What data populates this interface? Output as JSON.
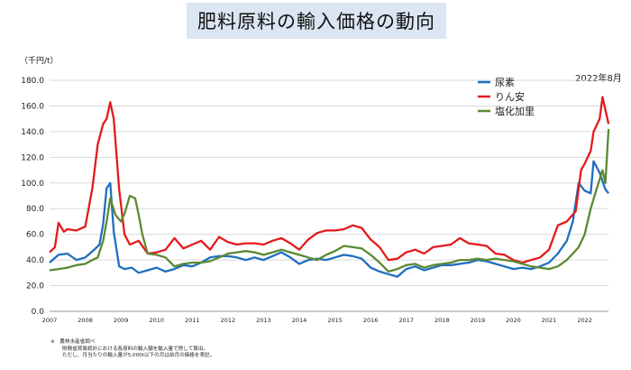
{
  "title": "肥料原料の輸入価格の動向",
  "unit_label": "（千円/t）",
  "latest_annotation": "2022年8月",
  "notes": [
    "※　農林水産省調べ",
    "財務省貿易統計における各原料の輸入額を輸入量で除して算出。",
    "ただし、月当たりの輸入量が5,000t以下の月は前月の価格を表記。"
  ],
  "chart_data": {
    "type": "line",
    "title": "肥料原料の輸入価格の動向",
    "ylabel": "（千円/t）",
    "xlabel": "",
    "ylim": [
      0,
      180
    ],
    "xlim": [
      2007.0,
      2022.667
    ],
    "y_ticks": [
      "0.0",
      "20.0",
      "40.0",
      "60.0",
      "80.0",
      "100.0",
      "120.0",
      "140.0",
      "160.0",
      "180.0"
    ],
    "x_ticks": [
      "2007",
      "2008",
      "2009",
      "2010",
      "2011",
      "2012",
      "2013",
      "2014",
      "2015",
      "2016",
      "2017",
      "2018",
      "2019",
      "2020",
      "2021",
      "2022"
    ],
    "grid": "horizontal",
    "legend_position": "top-right",
    "series": [
      {
        "name": "尿素",
        "color": "#1f6fbf",
        "points": [
          [
            2007.0,
            38
          ],
          [
            2007.25,
            44
          ],
          [
            2007.5,
            45
          ],
          [
            2007.75,
            40
          ],
          [
            2008.0,
            42
          ],
          [
            2008.25,
            48
          ],
          [
            2008.4,
            52
          ],
          [
            2008.5,
            68
          ],
          [
            2008.6,
            96
          ],
          [
            2008.7,
            100
          ],
          [
            2008.8,
            62
          ],
          [
            2008.95,
            35
          ],
          [
            2009.1,
            33
          ],
          [
            2009.3,
            34
          ],
          [
            2009.5,
            30
          ],
          [
            2009.75,
            32
          ],
          [
            2010.0,
            34
          ],
          [
            2010.25,
            31
          ],
          [
            2010.5,
            33
          ],
          [
            2010.75,
            36
          ],
          [
            2011.0,
            35
          ],
          [
            2011.25,
            38
          ],
          [
            2011.5,
            42
          ],
          [
            2011.75,
            43
          ],
          [
            2012.0,
            43
          ],
          [
            2012.25,
            42
          ],
          [
            2012.5,
            40
          ],
          [
            2012.75,
            42
          ],
          [
            2013.0,
            40
          ],
          [
            2013.25,
            43
          ],
          [
            2013.5,
            46
          ],
          [
            2013.75,
            42
          ],
          [
            2014.0,
            37
          ],
          [
            2014.25,
            40
          ],
          [
            2014.5,
            41
          ],
          [
            2014.75,
            40
          ],
          [
            2015.0,
            42
          ],
          [
            2015.25,
            44
          ],
          [
            2015.5,
            43
          ],
          [
            2015.75,
            41
          ],
          [
            2016.0,
            34
          ],
          [
            2016.25,
            31
          ],
          [
            2016.5,
            29
          ],
          [
            2016.75,
            27
          ],
          [
            2017.0,
            33
          ],
          [
            2017.25,
            35
          ],
          [
            2017.5,
            32
          ],
          [
            2017.75,
            34
          ],
          [
            2018.0,
            36
          ],
          [
            2018.25,
            36
          ],
          [
            2018.5,
            37
          ],
          [
            2018.75,
            38
          ],
          [
            2019.0,
            40
          ],
          [
            2019.25,
            39
          ],
          [
            2019.5,
            37
          ],
          [
            2019.75,
            35
          ],
          [
            2020.0,
            33
          ],
          [
            2020.25,
            34
          ],
          [
            2020.5,
            33
          ],
          [
            2020.75,
            35
          ],
          [
            2021.0,
            38
          ],
          [
            2021.25,
            45
          ],
          [
            2021.5,
            55
          ],
          [
            2021.67,
            70
          ],
          [
            2021.83,
            100
          ],
          [
            2022.0,
            94
          ],
          [
            2022.17,
            92
          ],
          [
            2022.25,
            117
          ],
          [
            2022.42,
            108
          ],
          [
            2022.58,
            95
          ],
          [
            2022.67,
            92
          ]
        ]
      },
      {
        "name": "りん安",
        "color": "#e31a1c",
        "points": [
          [
            2007.0,
            46
          ],
          [
            2007.15,
            50
          ],
          [
            2007.25,
            69
          ],
          [
            2007.4,
            62
          ],
          [
            2007.5,
            64
          ],
          [
            2007.75,
            63
          ],
          [
            2008.0,
            66
          ],
          [
            2008.2,
            96
          ],
          [
            2008.35,
            130
          ],
          [
            2008.5,
            146
          ],
          [
            2008.6,
            150
          ],
          [
            2008.7,
            163
          ],
          [
            2008.8,
            150
          ],
          [
            2008.95,
            95
          ],
          [
            2009.1,
            60
          ],
          [
            2009.25,
            52
          ],
          [
            2009.5,
            55
          ],
          [
            2009.75,
            45
          ],
          [
            2010.0,
            46
          ],
          [
            2010.25,
            48
          ],
          [
            2010.5,
            57
          ],
          [
            2010.75,
            49
          ],
          [
            2011.0,
            52
          ],
          [
            2011.25,
            55
          ],
          [
            2011.5,
            48
          ],
          [
            2011.75,
            58
          ],
          [
            2012.0,
            54
          ],
          [
            2012.25,
            52
          ],
          [
            2012.5,
            53
          ],
          [
            2012.75,
            53
          ],
          [
            2013.0,
            52
          ],
          [
            2013.25,
            55
          ],
          [
            2013.5,
            57
          ],
          [
            2013.75,
            53
          ],
          [
            2014.0,
            48
          ],
          [
            2014.25,
            56
          ],
          [
            2014.5,
            61
          ],
          [
            2014.75,
            63
          ],
          [
            2015.0,
            63
          ],
          [
            2015.25,
            64
          ],
          [
            2015.5,
            67
          ],
          [
            2015.75,
            65
          ],
          [
            2016.0,
            56
          ],
          [
            2016.25,
            50
          ],
          [
            2016.5,
            40
          ],
          [
            2016.75,
            41
          ],
          [
            2017.0,
            46
          ],
          [
            2017.25,
            48
          ],
          [
            2017.5,
            45
          ],
          [
            2017.75,
            50
          ],
          [
            2018.0,
            51
          ],
          [
            2018.25,
            52
          ],
          [
            2018.5,
            57
          ],
          [
            2018.75,
            53
          ],
          [
            2019.0,
            52
          ],
          [
            2019.25,
            51
          ],
          [
            2019.5,
            45
          ],
          [
            2019.75,
            44
          ],
          [
            2020.0,
            40
          ],
          [
            2020.25,
            38
          ],
          [
            2020.5,
            40
          ],
          [
            2020.75,
            42
          ],
          [
            2021.0,
            48
          ],
          [
            2021.25,
            67
          ],
          [
            2021.5,
            70
          ],
          [
            2021.75,
            78
          ],
          [
            2021.9,
            110
          ],
          [
            2022.0,
            115
          ],
          [
            2022.17,
            125
          ],
          [
            2022.25,
            140
          ],
          [
            2022.42,
            150
          ],
          [
            2022.5,
            167
          ],
          [
            2022.67,
            146
          ]
        ]
      },
      {
        "name": "塩化加里",
        "color": "#5b8a32",
        "points": [
          [
            2007.0,
            32
          ],
          [
            2007.25,
            33
          ],
          [
            2007.5,
            34
          ],
          [
            2007.75,
            36
          ],
          [
            2008.0,
            37
          ],
          [
            2008.2,
            40
          ],
          [
            2008.35,
            42
          ],
          [
            2008.5,
            55
          ],
          [
            2008.6,
            70
          ],
          [
            2008.7,
            88
          ],
          [
            2008.85,
            75
          ],
          [
            2009.0,
            70
          ],
          [
            2009.1,
            76
          ],
          [
            2009.25,
            90
          ],
          [
            2009.4,
            88
          ],
          [
            2009.5,
            75
          ],
          [
            2009.6,
            60
          ],
          [
            2009.75,
            45
          ],
          [
            2010.0,
            44
          ],
          [
            2010.25,
            42
          ],
          [
            2010.5,
            35
          ],
          [
            2010.75,
            37
          ],
          [
            2011.0,
            38
          ],
          [
            2011.25,
            38
          ],
          [
            2011.5,
            39
          ],
          [
            2011.75,
            42
          ],
          [
            2012.0,
            45
          ],
          [
            2012.25,
            46
          ],
          [
            2012.5,
            47
          ],
          [
            2012.75,
            46
          ],
          [
            2013.0,
            44
          ],
          [
            2013.25,
            46
          ],
          [
            2013.5,
            48
          ],
          [
            2013.75,
            46
          ],
          [
            2014.0,
            44
          ],
          [
            2014.25,
            42
          ],
          [
            2014.5,
            40
          ],
          [
            2014.75,
            44
          ],
          [
            2015.0,
            47
          ],
          [
            2015.25,
            51
          ],
          [
            2015.5,
            50
          ],
          [
            2015.75,
            49
          ],
          [
            2016.0,
            44
          ],
          [
            2016.25,
            38
          ],
          [
            2016.5,
            31
          ],
          [
            2016.75,
            33
          ],
          [
            2017.0,
            36
          ],
          [
            2017.25,
            37
          ],
          [
            2017.5,
            34
          ],
          [
            2017.75,
            36
          ],
          [
            2018.0,
            37
          ],
          [
            2018.25,
            38
          ],
          [
            2018.5,
            40
          ],
          [
            2018.75,
            40
          ],
          [
            2019.0,
            41
          ],
          [
            2019.25,
            40
          ],
          [
            2019.5,
            41
          ],
          [
            2019.75,
            40
          ],
          [
            2020.0,
            39
          ],
          [
            2020.25,
            37
          ],
          [
            2020.5,
            35
          ],
          [
            2020.75,
            34
          ],
          [
            2021.0,
            33
          ],
          [
            2021.25,
            35
          ],
          [
            2021.5,
            40
          ],
          [
            2021.67,
            45
          ],
          [
            2021.83,
            50
          ],
          [
            2022.0,
            60
          ],
          [
            2022.17,
            80
          ],
          [
            2022.33,
            95
          ],
          [
            2022.5,
            110
          ],
          [
            2022.58,
            100
          ],
          [
            2022.67,
            142
          ]
        ]
      }
    ]
  }
}
